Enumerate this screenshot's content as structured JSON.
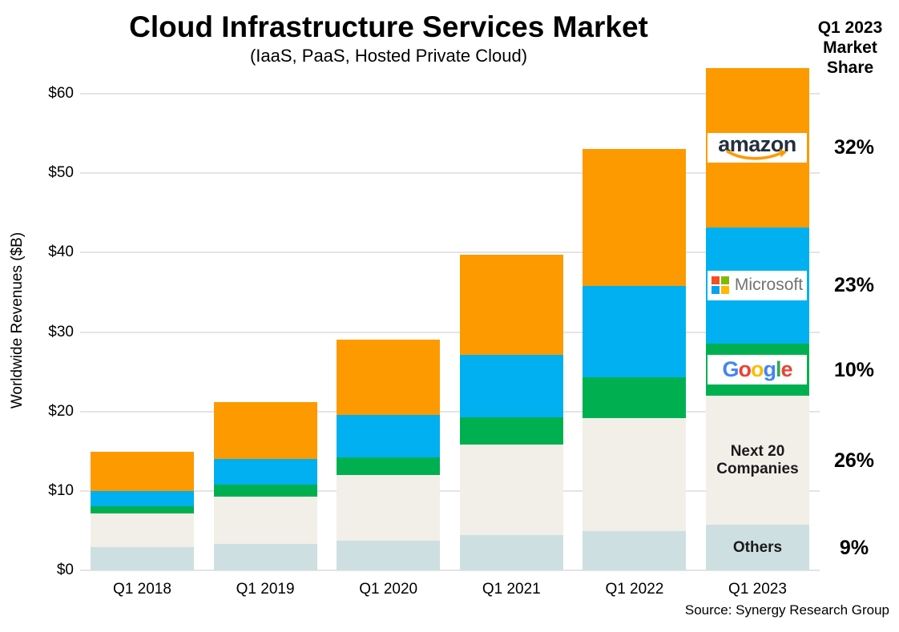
{
  "title": "Cloud Infrastructure Services Market",
  "subtitle": "(IaaS, PaaS, Hosted Private Cloud)",
  "right_header": "Q1 2023 Market Share",
  "source": "Source: Synergy Research Group",
  "y_axis": {
    "tick_prefix": "$"
  },
  "chart_data": {
    "type": "bar",
    "stacked": true,
    "title": "Cloud Infrastructure Services Market",
    "subtitle": "(IaaS, PaaS, Hosted Private Cloud)",
    "ylabel": "Worldwide Revenues ($B)",
    "xlabel": "",
    "ylim": [
      0,
      60
    ],
    "ytick_step": 10,
    "grid": true,
    "legend_position": "in-bar-right",
    "categories": [
      "Q1 2018",
      "Q1 2019",
      "Q1 2020",
      "Q1 2021",
      "Q1 2022",
      "Q1 2023"
    ],
    "series": [
      {
        "name": "Others",
        "color": "#CEDFE1",
        "values": [
          2.9,
          3.3,
          3.7,
          4.4,
          4.9,
          5.7
        ],
        "q1_2023_share": "9%",
        "label_style": "text",
        "label_lines": [
          "Others"
        ]
      },
      {
        "name": "Next 20 Companies",
        "color": "#F2EFE8",
        "values": [
          4.3,
          6.0,
          8.3,
          11.4,
          14.3,
          16.3
        ],
        "q1_2023_share": "26%",
        "label_style": "text",
        "label_lines": [
          "Next 20",
          "Companies"
        ]
      },
      {
        "name": "Google",
        "color": "#00B050",
        "values": [
          0.9,
          1.5,
          2.2,
          3.5,
          5.1,
          6.5
        ],
        "q1_2023_share": "10%",
        "label_style": "logo",
        "logo": "google"
      },
      {
        "name": "Microsoft",
        "color": "#00B0F0",
        "values": [
          1.9,
          3.2,
          5.4,
          7.8,
          11.5,
          14.7
        ],
        "q1_2023_share": "23%",
        "label_style": "logo",
        "logo": "microsoft"
      },
      {
        "name": "Amazon",
        "color": "#FD9A00",
        "values": [
          4.9,
          7.2,
          9.4,
          12.6,
          17.2,
          20.0
        ],
        "q1_2023_share": "32%",
        "label_style": "logo",
        "logo": "amazon"
      }
    ],
    "totals": [
      14.9,
      21.2,
      29.0,
      39.7,
      53.0,
      63.2
    ]
  },
  "logos": {
    "amazon": {
      "text": "amazon",
      "text_color": "#232F3E",
      "smile_color": "#FF9900"
    },
    "microsoft": {
      "text": "Microsoft",
      "text_color": "#737373",
      "squares": [
        "#F25022",
        "#7FBA00",
        "#00A4EF",
        "#FFB900"
      ]
    },
    "google": {
      "letters": [
        {
          "ch": "G",
          "color": "#4285F4"
        },
        {
          "ch": "o",
          "color": "#EA4335"
        },
        {
          "ch": "o",
          "color": "#FBBC05"
        },
        {
          "ch": "g",
          "color": "#4285F4"
        },
        {
          "ch": "l",
          "color": "#34A853"
        },
        {
          "ch": "e",
          "color": "#EA4335"
        }
      ]
    }
  }
}
